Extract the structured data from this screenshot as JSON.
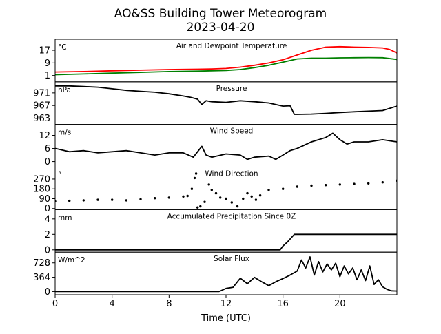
{
  "title": "AO&SS Building Tower Meteorogram",
  "subtitle": "2023-04-20",
  "xlabel": "Time (UTC)",
  "chart_data": [
    {
      "type": "line",
      "title": "Air and Dewpoint Temperature",
      "unit": "°C",
      "yticks": [
        1,
        9,
        17
      ],
      "ylim": [
        -3,
        24
      ],
      "xlim": [
        0,
        24
      ],
      "xticks": [
        0,
        4,
        8,
        12,
        16,
        20
      ],
      "series": [
        {
          "color": "#ff0000",
          "x": [
            0,
            2,
            4,
            6,
            8,
            10,
            11,
            12,
            13,
            14,
            15,
            16,
            17,
            18,
            19,
            20,
            21,
            22,
            23,
            23.5,
            24
          ],
          "y": [
            3.2,
            3.5,
            4.0,
            4.4,
            4.8,
            5.0,
            5.2,
            5.5,
            6.3,
            7.5,
            9.0,
            11.0,
            14.0,
            17.0,
            19.0,
            19.3,
            19.0,
            18.8,
            18.5,
            17.5,
            15.3
          ]
        },
        {
          "color": "#008000",
          "x": [
            0,
            2,
            4,
            6,
            8,
            10,
            11,
            12,
            13,
            14,
            15,
            16,
            17,
            18,
            19,
            20,
            21,
            22,
            23,
            24
          ],
          "y": [
            1.5,
            2.0,
            2.5,
            3.0,
            3.5,
            3.8,
            4.0,
            4.2,
            4.8,
            6.0,
            7.5,
            9.5,
            11.5,
            12.0,
            12.0,
            12.2,
            12.3,
            12.4,
            12.3,
            11.2
          ]
        }
      ]
    },
    {
      "type": "line",
      "title": "Pressure",
      "unit": "hPa",
      "yticks": [
        963,
        967,
        971
      ],
      "ylim": [
        961,
        974.5
      ],
      "xlim": [
        0,
        24
      ],
      "series": [
        {
          "color": "#000000",
          "x": [
            0,
            1,
            2,
            3,
            4,
            5,
            6,
            7,
            8,
            9,
            9.5,
            10,
            10.3,
            10.6,
            11,
            12,
            13,
            14,
            15,
            16,
            16.5,
            16.8,
            17,
            18,
            19,
            20,
            21,
            22,
            23,
            24
          ],
          "y": [
            973.2,
            973.2,
            973.0,
            972.8,
            972.3,
            971.8,
            971.5,
            971.2,
            970.7,
            970.0,
            969.6,
            969.0,
            967.3,
            968.5,
            968.2,
            968.0,
            968.5,
            968.2,
            967.8,
            966.8,
            966.9,
            964.2,
            964.2,
            964.3,
            964.5,
            964.8,
            965.0,
            965.2,
            965.4,
            966.8
          ]
        }
      ]
    },
    {
      "type": "line",
      "title": "Wind Speed",
      "unit": "m/s",
      "yticks": [
        0,
        6,
        12
      ],
      "ylim": [
        -2.5,
        17
      ],
      "xlim": [
        0,
        24
      ],
      "series": [
        {
          "color": "#000000",
          "x": [
            0,
            1,
            2,
            3,
            4,
            5,
            6,
            7,
            8,
            9,
            9.7,
            10.3,
            10.6,
            11,
            12,
            13,
            13.5,
            14,
            15,
            15.5,
            16,
            16.5,
            17,
            18,
            19,
            19.5,
            20,
            20.5,
            21,
            22,
            23,
            24
          ],
          "y": [
            6,
            4.5,
            5,
            4,
            4.5,
            5,
            4,
            3,
            4,
            4,
            2,
            7,
            3,
            2,
            3.5,
            3,
            1,
            2,
            2.5,
            1,
            3,
            5,
            6,
            9,
            11,
            13,
            10,
            8,
            9,
            9,
            10,
            9
          ]
        }
      ]
    },
    {
      "type": "scatter",
      "title": "Wind Direction",
      "unit": "°",
      "yticks": [
        0,
        90,
        180,
        270
      ],
      "ylim": [
        -10,
        380
      ],
      "xlim": [
        0,
        24
      ],
      "series": [
        {
          "color": "#000000",
          "x": [
            0,
            1,
            2,
            3,
            4,
            5,
            6,
            7,
            8,
            9,
            9.3,
            9.6,
            9.8,
            9.9,
            10,
            10.2,
            10.5,
            10.8,
            11,
            11.3,
            11.6,
            12,
            12.4,
            12.8,
            13.2,
            13.5,
            13.8,
            14.1,
            14.4,
            15,
            16,
            17,
            18,
            19,
            20,
            21,
            22,
            23,
            24
          ],
          "y": [
            65,
            70,
            75,
            80,
            80,
            75,
            85,
            95,
            100,
            110,
            115,
            180,
            280,
            320,
            10,
            20,
            60,
            220,
            170,
            140,
            100,
            90,
            55,
            20,
            90,
            140,
            110,
            80,
            120,
            170,
            180,
            200,
            210,
            215,
            220,
            225,
            230,
            240,
            255
          ]
        }
      ]
    },
    {
      "type": "line",
      "title": "Accumulated Precipitation Since 0Z",
      "unit": "mm",
      "yticks": [
        0,
        2,
        4
      ],
      "ylim": [
        -0.3,
        5.2
      ],
      "xlim": [
        0,
        24
      ],
      "series": [
        {
          "color": "#000000",
          "x": [
            0,
            15.8,
            16.0,
            16.3,
            16.6,
            16.8,
            24
          ],
          "y": [
            0,
            0,
            0.5,
            1.0,
            1.6,
            2.0,
            2.0
          ]
        }
      ]
    },
    {
      "type": "line",
      "title": "Solar Flux",
      "unit": "W/m^2",
      "yticks": [
        0,
        364,
        728
      ],
      "ylim": [
        -80,
        1000
      ],
      "xlim": [
        0,
        24
      ],
      "series": [
        {
          "color": "#000000",
          "x": [
            0,
            4,
            8,
            11.5,
            12,
            12.5,
            13,
            13.5,
            14,
            14.5,
            15,
            15.5,
            16,
            16.5,
            17,
            17.3,
            17.6,
            17.9,
            18.2,
            18.5,
            18.8,
            19.1,
            19.4,
            19.7,
            20,
            20.3,
            20.6,
            20.9,
            21.2,
            21.5,
            21.8,
            22.1,
            22.4,
            22.7,
            23,
            23.3,
            23.6,
            24
          ],
          "y": [
            0,
            0,
            0,
            0,
            80,
            110,
            340,
            200,
            360,
            250,
            150,
            250,
            330,
            420,
            520,
            800,
            600,
            880,
            420,
            760,
            500,
            700,
            550,
            720,
            380,
            650,
            450,
            600,
            300,
            550,
            280,
            650,
            180,
            300,
            120,
            60,
            20,
            15
          ]
        }
      ]
    }
  ]
}
